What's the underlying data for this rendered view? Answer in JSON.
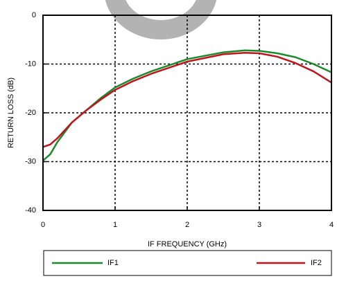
{
  "chart_data": {
    "type": "line",
    "x_label": "IF FREQUENCY (GHz)",
    "y_label": "RETURN LOSS (dB)",
    "x": [
      0,
      0.1,
      0.2,
      0.4,
      0.6,
      0.8,
      1.0,
      1.25,
      1.5,
      2.0,
      2.5,
      2.8,
      3.0,
      3.25,
      3.5,
      3.75,
      4.0
    ],
    "series": [
      {
        "name": "IF1",
        "color": "#1a8a2a",
        "values": [
          -29.8,
          -28.5,
          -26,
          -22,
          -19.5,
          -17,
          -14.8,
          -13,
          -11.5,
          -9,
          -7.6,
          -7.2,
          -7.3,
          -7.8,
          -8.6,
          -10,
          -11.7
        ]
      },
      {
        "name": "IF2",
        "color": "#c0141c",
        "values": [
          -27,
          -26.5,
          -25.2,
          -22,
          -19.5,
          -17.3,
          -15.3,
          -13.5,
          -12,
          -9.5,
          -8,
          -7.7,
          -7.8,
          -8.5,
          -9.8,
          -11.5,
          -13.8
        ]
      }
    ],
    "xlim": [
      0,
      4
    ],
    "xticks": [
      0,
      1,
      2,
      3,
      4
    ],
    "ylim": [
      -40,
      0
    ],
    "yticks": [
      0,
      -10,
      -20,
      -30,
      -40
    ],
    "grid": true,
    "legend": "bottom"
  }
}
